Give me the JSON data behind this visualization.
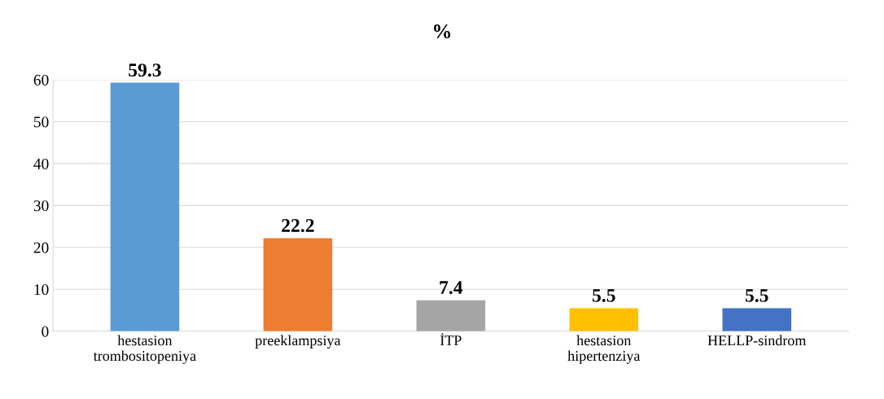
{
  "chart_data": {
    "type": "bar",
    "title": "%",
    "categories": [
      "hestasion trombositopeniya",
      "preeklampsiya",
      "İTP",
      "hestasion hipertenziya",
      "HELLP-sindrom"
    ],
    "values": [
      59.3,
      22.2,
      7.4,
      5.5,
      5.5
    ],
    "colors": [
      "#5b9bd5",
      "#ed7d31",
      "#a5a5a5",
      "#ffc000",
      "#4472c4"
    ],
    "ylim": [
      0,
      60
    ],
    "yticks": [
      0,
      10,
      20,
      30,
      40,
      50,
      60
    ],
    "grid": "y",
    "data_labels": true
  }
}
